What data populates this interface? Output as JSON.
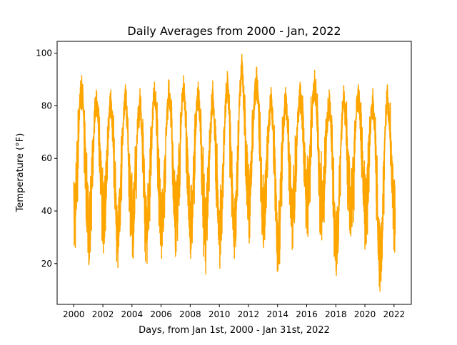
{
  "chart_data": {
    "type": "line",
    "title": "Daily Averages from 2000 - Jan, 2022",
    "xlabel": "Days, from Jan 1st, 2000 - Jan 31st, 2022",
    "ylabel": "Temperature (°F)",
    "x_range": [
      "2000-01-01",
      "2022-01-31"
    ],
    "xlim": [
      "1998-11-10",
      "2023-03-10"
    ],
    "ylim": [
      4.5,
      104.5
    ],
    "x_ticks": [
      "2000",
      "2002",
      "2004",
      "2006",
      "2008",
      "2010",
      "2012",
      "2014",
      "2016",
      "2018",
      "2020",
      "2022"
    ],
    "y_ticks": [
      20,
      40,
      60,
      80,
      100
    ],
    "grid": false,
    "series": [
      {
        "color": "#FFA500",
        "seasonal_extremes": [
          {
            "year": 2000,
            "summer_max": 91.5,
            "winter_min": 27.0
          },
          {
            "year": 2001,
            "summer_max": 86.0,
            "winter_min": 19.5
          },
          {
            "year": 2002,
            "summer_max": 86.0,
            "winter_min": 24.0
          },
          {
            "year": 2003,
            "summer_max": 88.0,
            "winter_min": 18.5
          },
          {
            "year": 2004,
            "summer_max": 86.5,
            "winter_min": 23.0
          },
          {
            "year": 2005,
            "summer_max": 89.0,
            "winter_min": 20.0
          },
          {
            "year": 2006,
            "summer_max": 89.5,
            "winter_min": 22.0
          },
          {
            "year": 2007,
            "summer_max": 91.5,
            "winter_min": 24.5
          },
          {
            "year": 2008,
            "summer_max": 89.0,
            "winter_min": 22.0
          },
          {
            "year": 2009,
            "summer_max": 86.5,
            "winter_min": 21.0
          },
          {
            "year": 2010,
            "summer_max": 93.0,
            "winter_min": 19.5
          },
          {
            "year": 2011,
            "summer_max": 99.5,
            "winter_min": 22.0
          },
          {
            "year": 2012,
            "summer_max": 94.5,
            "winter_min": 30.0
          },
          {
            "year": 2013,
            "summer_max": 87.0,
            "winter_min": 26.0
          },
          {
            "year": 2014,
            "summer_max": 87.0,
            "winter_min": 17.5
          },
          {
            "year": 2015,
            "summer_max": 89.0,
            "winter_min": 26.0
          },
          {
            "year": 2016,
            "summer_max": 93.5,
            "winter_min": 31.5
          },
          {
            "year": 2017,
            "summer_max": 86.0,
            "winter_min": 29.0
          },
          {
            "year": 2018,
            "summer_max": 87.5,
            "winter_min": 15.5
          },
          {
            "year": 2019,
            "summer_max": 88.0,
            "winter_min": 30.5
          },
          {
            "year": 2020,
            "summer_max": 86.5,
            "winter_min": 27.0
          },
          {
            "year": 2021,
            "summer_max": 88.0,
            "winter_min": 9.5
          },
          {
            "year": 2022,
            "summer_max": null,
            "winter_min": 27.0
          }
        ]
      }
    ]
  }
}
